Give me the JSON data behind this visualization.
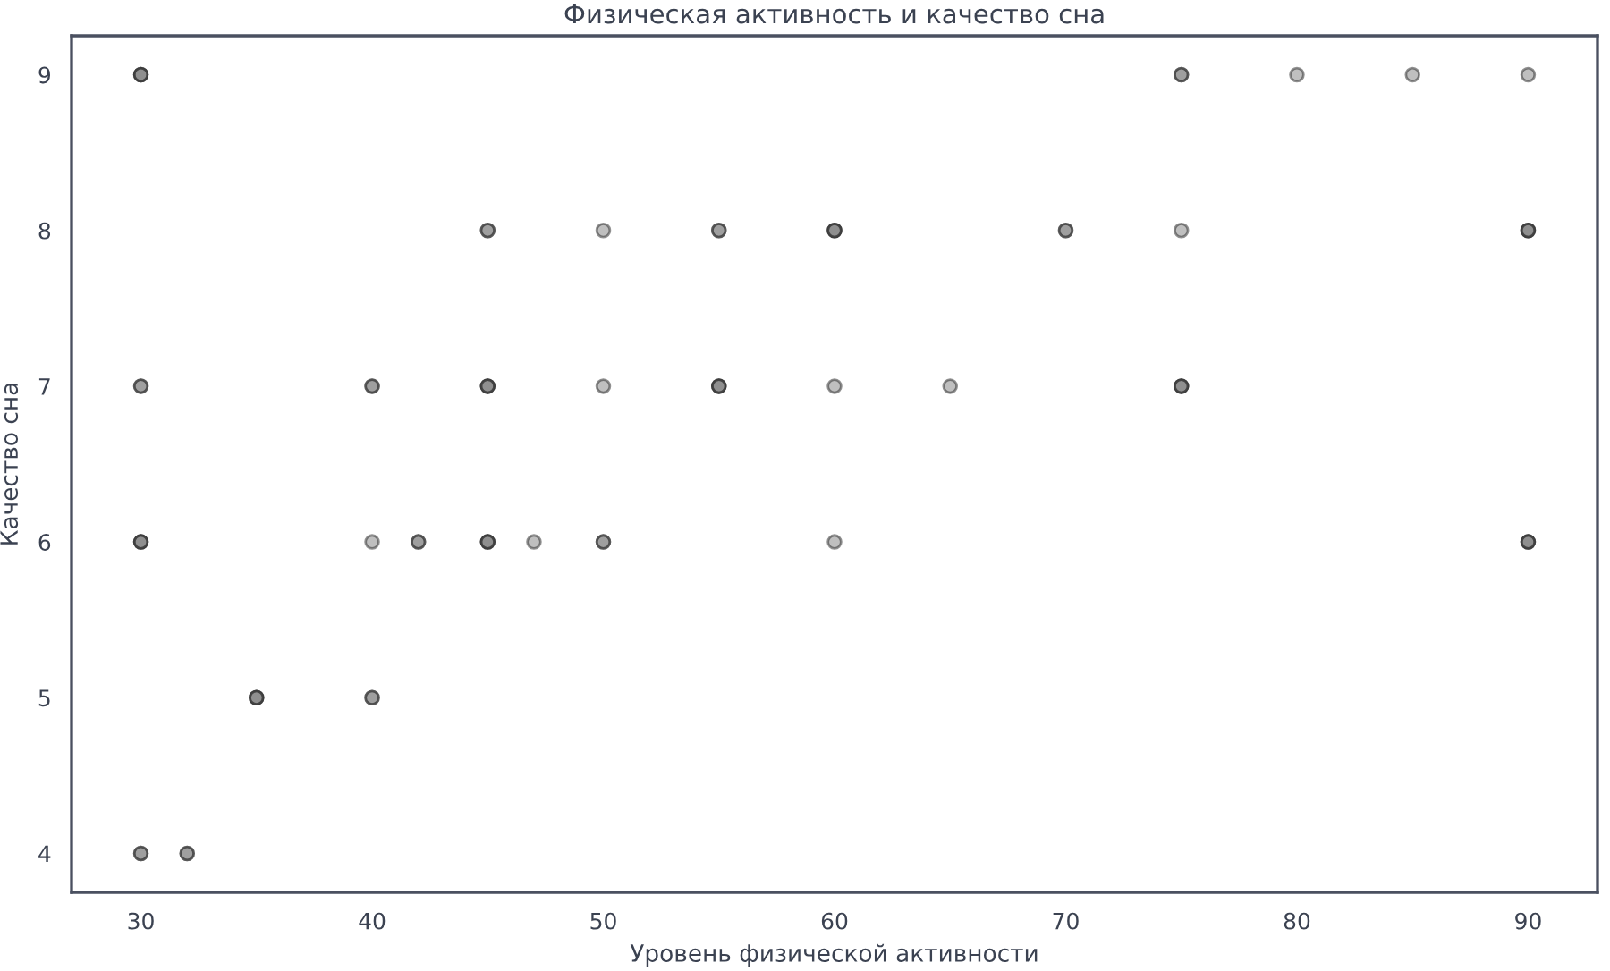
{
  "chart_data": {
    "type": "scatter",
    "title": "Физическая активность и качество сна",
    "xlabel": "Уровень физической активности",
    "ylabel": "Качество сна",
    "x": [
      30,
      30,
      30,
      75,
      75,
      80,
      85,
      90,
      45,
      45,
      50,
      55,
      55,
      60,
      60,
      60,
      70,
      70,
      75,
      90,
      90,
      90,
      30,
      30,
      40,
      40,
      45,
      45,
      45,
      50,
      55,
      55,
      55,
      60,
      65,
      75,
      75,
      75,
      30,
      30,
      30,
      40,
      42,
      42,
      45,
      45,
      45,
      47,
      50,
      50,
      60,
      90,
      90,
      90,
      35,
      35,
      35,
      40,
      40,
      30,
      30,
      32,
      32
    ],
    "values": [
      9,
      9,
      9,
      9,
      9,
      9,
      9,
      9,
      8,
      8,
      8,
      8,
      8,
      8,
      8,
      8,
      8,
      8,
      8,
      8,
      8,
      8,
      7,
      7,
      7,
      7,
      7,
      7,
      7,
      7,
      7,
      7,
      7,
      7,
      7,
      7,
      7,
      7,
      6,
      6,
      6,
      6,
      6,
      6,
      6,
      6,
      6,
      6,
      6,
      6,
      6,
      6,
      6,
      6,
      5,
      5,
      5,
      5,
      5,
      4,
      4,
      4,
      4
    ],
    "color": "#7f7f7f",
    "marker": "circle",
    "grid": false,
    "xlim": [
      27,
      93
    ],
    "xticks": [
      30,
      40,
      50,
      60,
      70,
      80,
      90
    ],
    "ylim": [
      3.75,
      9.25
    ],
    "yticks": [
      4,
      5,
      6,
      7,
      8,
      9
    ]
  }
}
